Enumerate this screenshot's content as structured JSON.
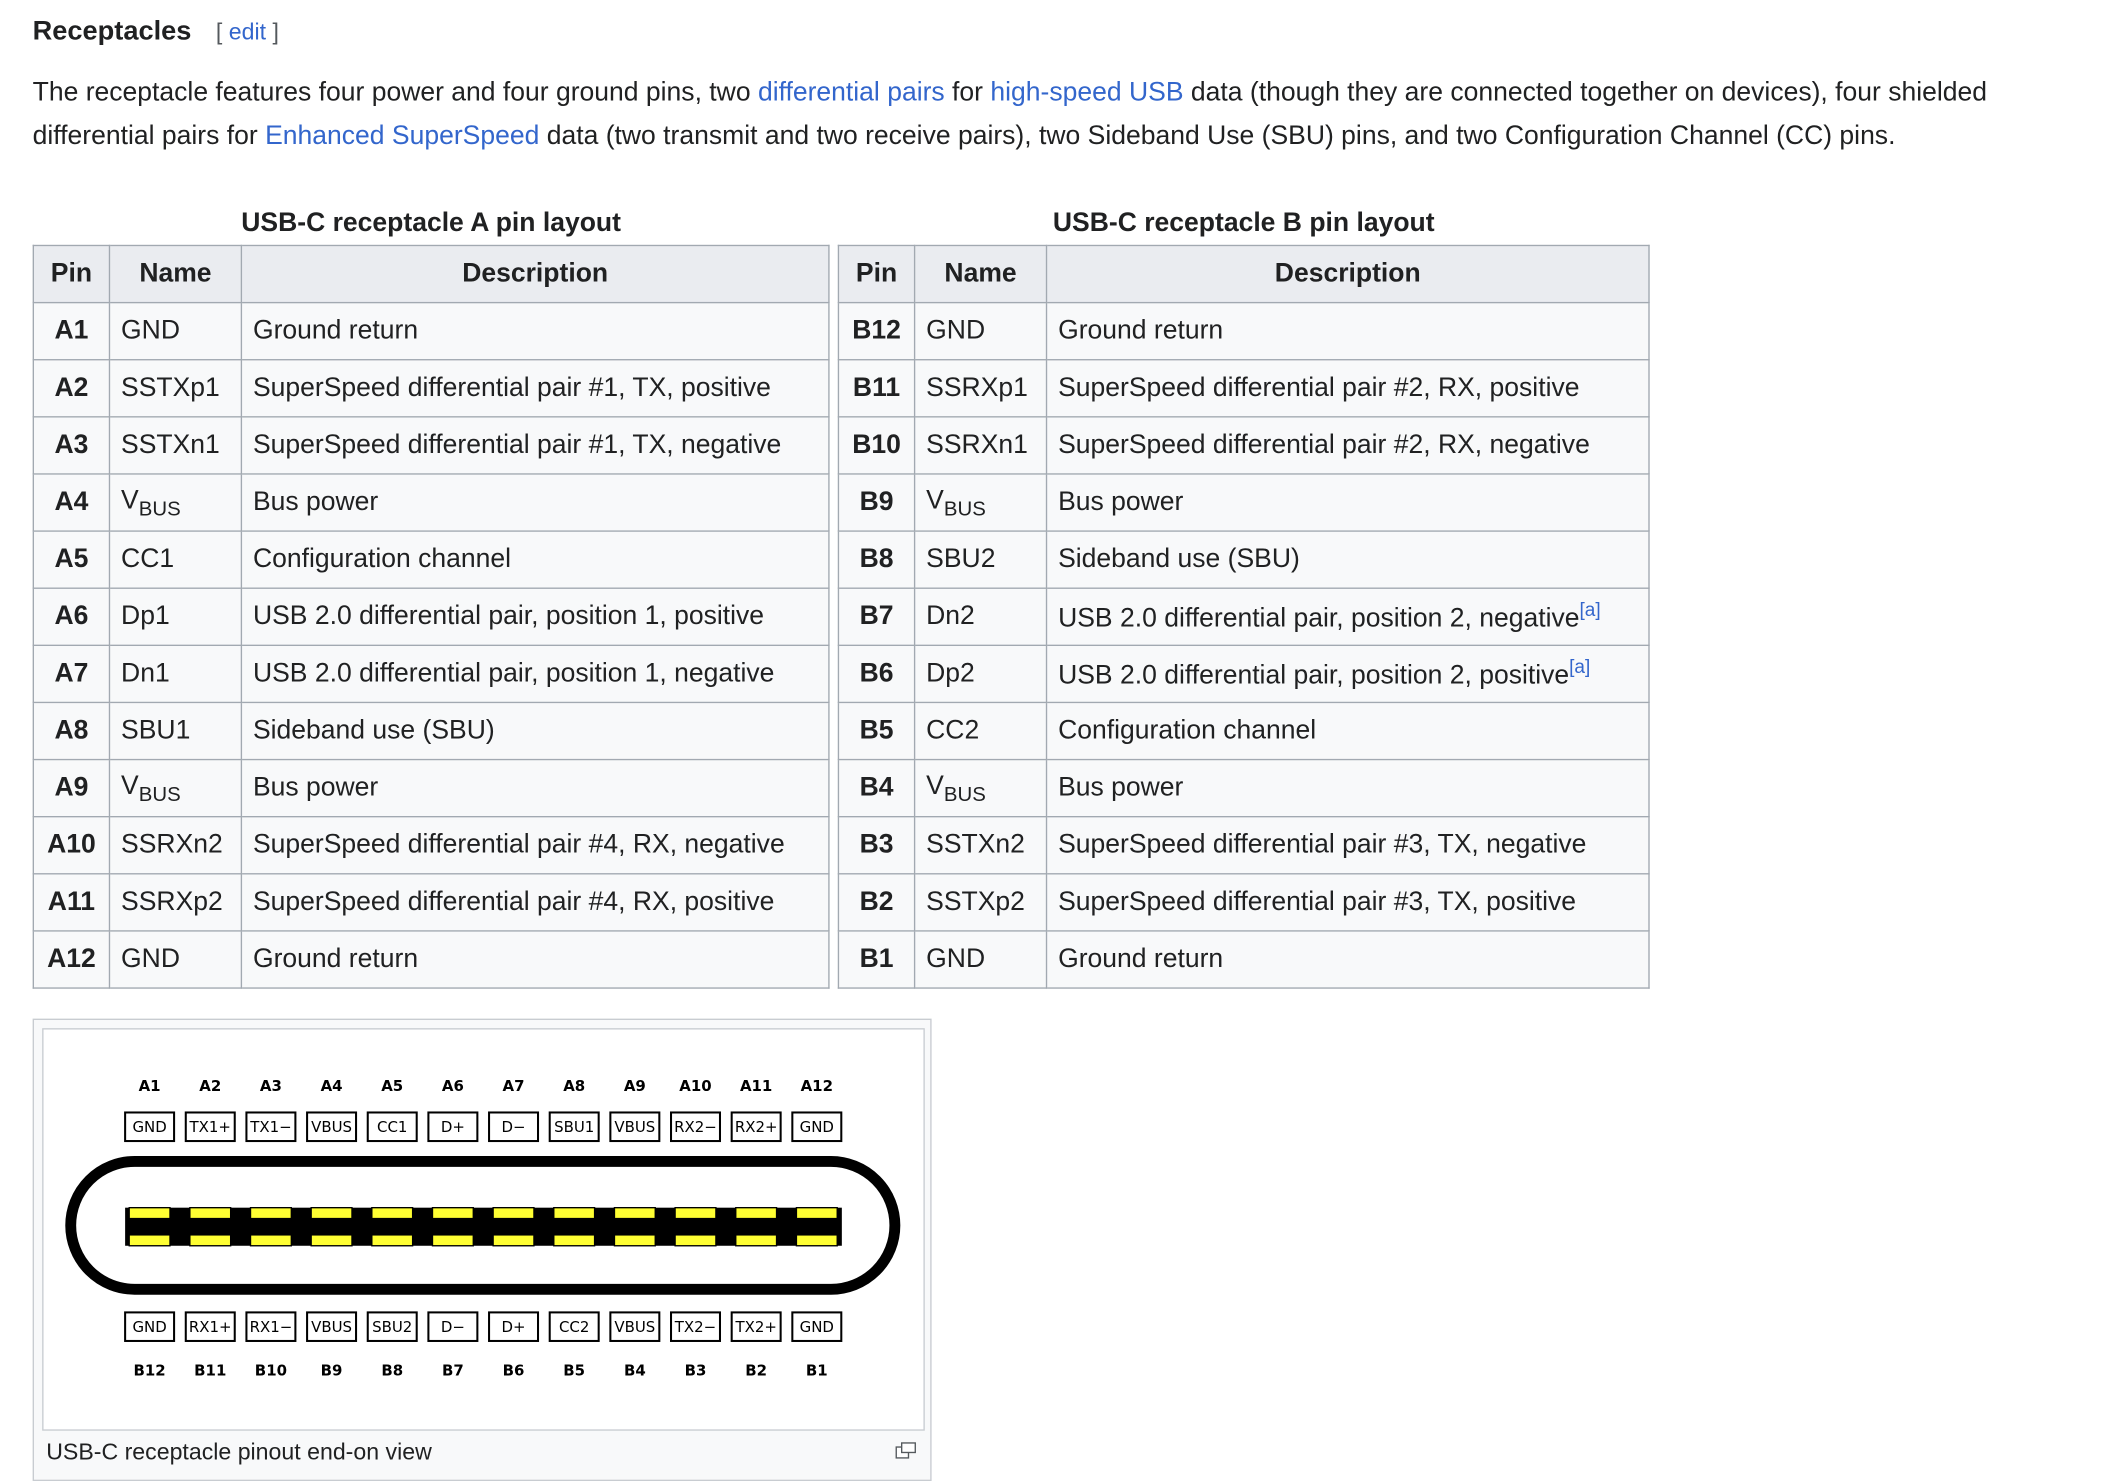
{
  "heading": {
    "title": "Receptacles",
    "edit_open": "[",
    "edit": "edit",
    "edit_close": "]"
  },
  "paragraph": [
    "The receptacle features four power and four ground pins, two ",
    {
      "link": "differential pairs"
    },
    " for ",
    {
      "link": "high-speed USB"
    },
    " data (though they are connected together on devices), four shielded differential pairs for ",
    {
      "link": "Enhanced SuperSpeed"
    },
    " data (two transmit and two receive pairs), two Sideband Use (SBU) pins, and two Configuration Channel (CC) pins."
  ],
  "tables": [
    {
      "caption": "USB-C receptacle A pin layout",
      "headers": [
        "Pin",
        "Name",
        "Description"
      ],
      "rows": [
        [
          "A1",
          "GND",
          "Ground return"
        ],
        [
          "A2",
          "SSTXp1",
          "SuperSpeed differential pair #1, TX, positive"
        ],
        [
          "A3",
          "SSTXn1",
          "SuperSpeed differential pair #1, TX, negative"
        ],
        [
          "A4",
          {
            "text": "V",
            "sub": "BUS"
          },
          "Bus power"
        ],
        [
          "A5",
          "CC1",
          "Configuration channel"
        ],
        [
          "A6",
          "Dp1",
          "USB 2.0 differential pair, position 1, positive"
        ],
        [
          "A7",
          "Dn1",
          "USB 2.0 differential pair, position 1, negative"
        ],
        [
          "A8",
          "SBU1",
          "Sideband use (SBU)"
        ],
        [
          "A9",
          {
            "text": "V",
            "sub": "BUS"
          },
          "Bus power"
        ],
        [
          "A10",
          "SSRXn2",
          "SuperSpeed differential pair #4, RX, negative"
        ],
        [
          "A11",
          "SSRXp2",
          "SuperSpeed differential pair #4, RX, positive"
        ],
        [
          "A12",
          "GND",
          "Ground return"
        ]
      ]
    },
    {
      "caption": "USB-C receptacle B pin layout",
      "headers": [
        "Pin",
        "Name",
        "Description"
      ],
      "rows": [
        [
          "B12",
          "GND",
          "Ground return"
        ],
        [
          "B11",
          "SSRXp1",
          "SuperSpeed differential pair #2, RX, positive"
        ],
        [
          "B10",
          "SSRXn1",
          "SuperSpeed differential pair #2, RX, negative"
        ],
        [
          "B9",
          {
            "text": "V",
            "sub": "BUS"
          },
          "Bus power"
        ],
        [
          "B8",
          "SBU2",
          "Sideband use (SBU)"
        ],
        [
          "B7",
          "Dn2",
          {
            "text": "USB 2.0 differential pair, position 2, negative",
            "note": "[a]"
          }
        ],
        [
          "B6",
          "Dp2",
          {
            "text": "USB 2.0 differential pair, position 2, positive",
            "note": "[a]"
          }
        ],
        [
          "B5",
          "CC2",
          "Configuration channel"
        ],
        [
          "B4",
          {
            "text": "V",
            "sub": "BUS"
          },
          "Bus power"
        ],
        [
          "B3",
          "SSTXn2",
          "SuperSpeed differential pair #3, TX, negative"
        ],
        [
          "B2",
          "SSTXp2",
          "SuperSpeed differential pair #3, TX, positive"
        ],
        [
          "B1",
          "GND",
          "Ground return"
        ]
      ]
    }
  ],
  "diagram": {
    "top_labels": [
      "A1",
      "A2",
      "A3",
      "A4",
      "A5",
      "A6",
      "A7",
      "A8",
      "A9",
      "A10",
      "A11",
      "A12"
    ],
    "top_boxes": [
      "GND",
      "TX1+",
      "TX1−",
      "VBUS",
      "CC1",
      "D+",
      "D−",
      "SBU1",
      "VBUS",
      "RX2−",
      "RX2+",
      "GND"
    ],
    "bottom_boxes": [
      "GND",
      "RX1+",
      "RX1−",
      "VBUS",
      "SBU2",
      "D−",
      "D+",
      "CC2",
      "VBUS",
      "TX2−",
      "TX2+",
      "GND"
    ],
    "bottom_labels": [
      "B12",
      "B11",
      "B10",
      "B9",
      "B8",
      "B7",
      "B6",
      "B5",
      "B4",
      "B3",
      "B2",
      "B1"
    ],
    "caption": "USB-C receptacle pinout end-on view"
  }
}
